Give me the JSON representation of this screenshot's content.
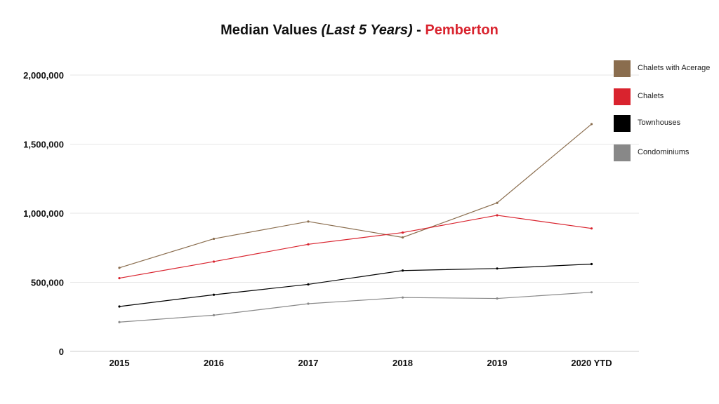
{
  "title": {
    "main": "Median Values ",
    "italic": "(Last 5 Years)",
    "sep": " - ",
    "location": "Pemberton"
  },
  "colors": {
    "location": "#d9232e",
    "grid": "#e6e6e6",
    "axis": "#cccccc"
  },
  "chart_data": {
    "type": "line",
    "categories": [
      "2015",
      "2016",
      "2017",
      "2018",
      "2019",
      "2020 YTD"
    ],
    "ylim": [
      0,
      2000000
    ],
    "yticks": [
      0,
      500000,
      1000000,
      1500000,
      2000000
    ],
    "ytick_labels": [
      "0",
      "500,000",
      "1,000,000",
      "1,500,000",
      "2,000,000"
    ],
    "grid": true,
    "legend": "right",
    "series": [
      {
        "name": "Chalets with Acerage",
        "color": "#8a6d4e",
        "values": [
          605000,
          815000,
          940000,
          825000,
          1075000,
          1645000
        ]
      },
      {
        "name": "Chalets",
        "color": "#d9232e",
        "values": [
          530000,
          650000,
          775000,
          860000,
          985000,
          890000
        ]
      },
      {
        "name": "Townhouses",
        "color": "#000000",
        "values": [
          325000,
          410000,
          485000,
          585000,
          600000,
          632000
        ]
      },
      {
        "name": "Condominiums",
        "color": "#888888",
        "values": [
          212000,
          262000,
          345000,
          390000,
          383000,
          428000
        ]
      }
    ]
  }
}
